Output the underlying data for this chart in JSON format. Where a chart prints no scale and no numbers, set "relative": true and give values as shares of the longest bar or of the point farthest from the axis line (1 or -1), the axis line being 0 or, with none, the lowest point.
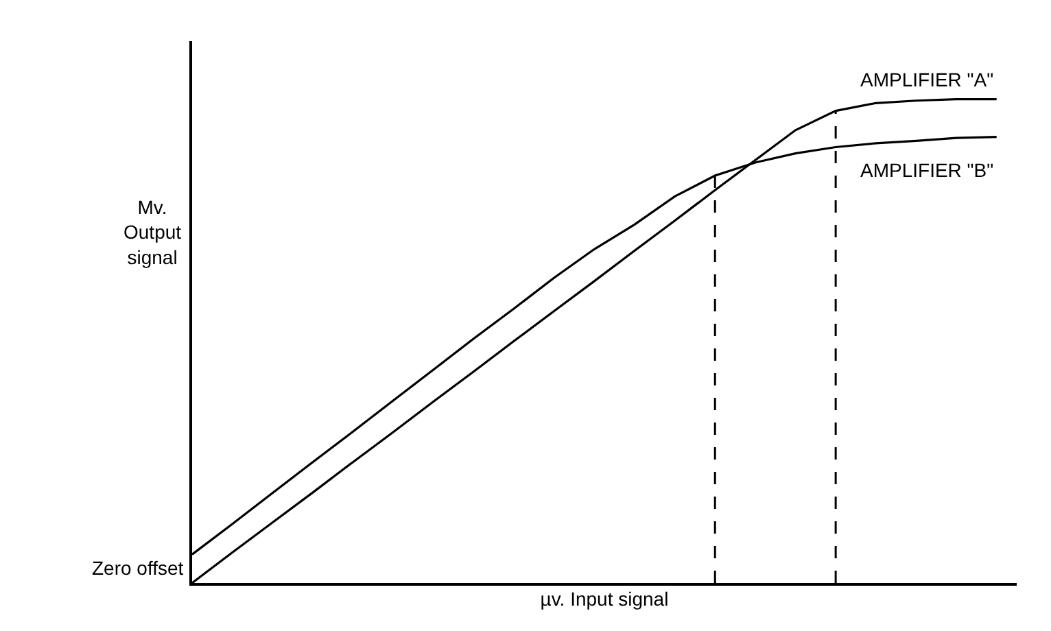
{
  "chart_data": {
    "type": "line",
    "relative": true,
    "xlabel": "µv. Input signal",
    "ylabel": "Mv.\nOutput\nsignal",
    "categories": [
      null,
      null,
      null,
      null,
      null,
      null,
      null,
      null,
      null,
      null,
      null,
      null,
      null,
      null,
      null,
      null,
      null,
      null,
      null,
      null,
      null
    ],
    "series": [
      {
        "name": "AMPLIFIER \"A\"",
        "color": "#000000",
        "values": [
          0,
          0.063,
          0.125,
          0.187,
          0.25,
          0.312,
          0.375,
          0.437,
          0.5,
          0.562,
          0.624,
          0.687,
          0.749,
          0.812,
          0.874,
          0.936,
          0.976,
          0.992,
          0.997,
          1,
          1
        ]
      },
      {
        "name": "AMPLIFIER \"B\"",
        "color": "#000000",
        "values": [
          0.059,
          0.122,
          0.186,
          0.25,
          0.313,
          0.377,
          0.441,
          0.505,
          0.567,
          0.631,
          0.69,
          0.741,
          0.799,
          0.842,
          0.869,
          0.888,
          0.901,
          0.909,
          0.914,
          0.92,
          0.922
        ]
      }
    ],
    "annotations": [
      "Zero offset"
    ],
    "legend": false,
    "grid": false,
    "marker": "none",
    "line_style": "solid"
  }
}
